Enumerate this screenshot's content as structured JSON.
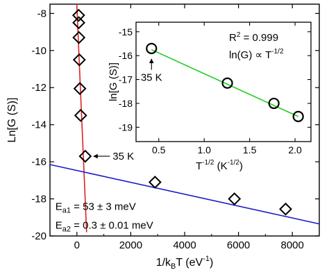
{
  "chart_data": [
    {
      "type": "scatter",
      "xlabel": {
        "base": "1/k",
        "sub": "B",
        "mid": "T (eV",
        "sup": "-1",
        "end": ")"
      },
      "ylabel": "Ln[G (S)]",
      "xlim": [
        -1000,
        9000
      ],
      "ylim": [
        -20,
        -7.5
      ],
      "xticks": [
        0,
        2000,
        4000,
        6000,
        8000
      ],
      "yticks": [
        -20,
        -18,
        -16,
        -14,
        -12,
        -10,
        -8
      ],
      "series": [
        {
          "color": "#000000",
          "marker": "diamond",
          "x": [
            65,
            70,
            75,
            90,
            110,
            140,
            310,
            2900,
            5850,
            7750
          ],
          "y": [
            -8.1,
            -8.5,
            -9.3,
            -10.5,
            -12.05,
            -13.5,
            -15.7,
            -17.1,
            -18.0,
            -18.55
          ]
        }
      ],
      "fits": [
        {
          "color": "#e02020",
          "x": [
            -5,
            360
          ],
          "y": [
            -7.5,
            -19.8
          ]
        },
        {
          "color": "#1a1acc",
          "x": [
            -1000,
            9000
          ],
          "y": [
            -16.15,
            -19.35
          ]
        }
      ],
      "annotations": [
        {
          "text": "35 K",
          "arrow_to": [
            310,
            -15.7
          ],
          "at": [
            2100,
            -15.7
          ]
        }
      ],
      "legend_text": [
        {
          "color": "#e02020",
          "base": "E",
          "sub": "a1",
          "rest": " = 53 ± 3 meV",
          "at": [
            -800,
            -18.6
          ]
        },
        {
          "color": "#1a1acc",
          "base": "E",
          "sub": "a2",
          "rest": " = 0.3 ± 0.01 meV",
          "at": [
            -800,
            -19.6
          ]
        }
      ]
    },
    {
      "type": "scatter",
      "position": "inset",
      "xlabel": {
        "base": "T",
        "sup1": "-1/2",
        "mid": " (K",
        "sup2": "-1/2",
        "end": ")"
      },
      "ylabel": "ln[G (S)]",
      "xlim": [
        0.1,
        0.87
      ],
      "ylim": [
        -19.6,
        -14.6
      ],
      "xticks": [
        0.5,
        1.0,
        1.5,
        2.0
      ],
      "xtick_labels": [
        "0.5",
        "1.0",
        "1.5",
        "2.0"
      ],
      "xtick_positions": [
        0.2,
        0.4,
        0.6,
        0.8
      ],
      "yticks": [
        -19,
        -18,
        -17,
        -16,
        -15
      ],
      "series": [
        {
          "color": "#000000",
          "marker": "circle",
          "x": [
            0.168,
            0.502,
            0.707,
            0.814
          ],
          "y": [
            -15.7,
            -17.15,
            -18.0,
            -18.55
          ]
        }
      ],
      "fits": [
        {
          "color": "#22cc22",
          "x": [
            0.168,
            0.814
          ],
          "y": [
            -15.75,
            -18.55
          ]
        }
      ],
      "annotations": [
        {
          "text": "35 K",
          "arrow_to": [
            0.168,
            -15.85
          ],
          "at": [
            0.168,
            -17.0
          ]
        }
      ],
      "texts": [
        {
          "base": "R",
          "sup": "2",
          "rest": " = 0.999"
        },
        {
          "base": "ln(G) ∝ T",
          "sup": "-1/2"
        }
      ]
    }
  ]
}
